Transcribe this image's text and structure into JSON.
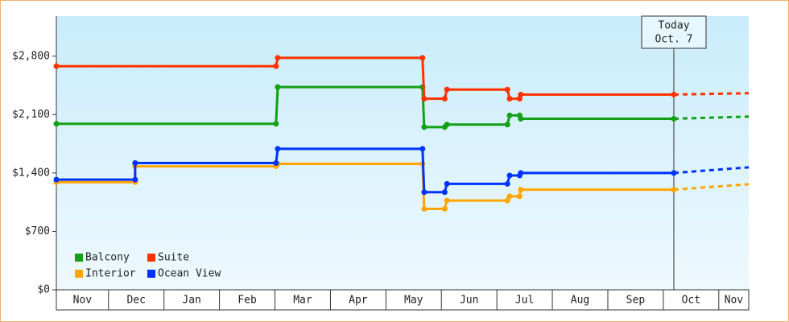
{
  "chart_data": {
    "type": "line",
    "months": [
      "Nov",
      "Dec",
      "Jan",
      "Feb",
      "Mar",
      "Apr",
      "May",
      "Jun",
      "Jul",
      "Aug",
      "Sep",
      "Oct",
      "Nov"
    ],
    "xlim": [
      0.06,
      12.54
    ],
    "ylim": [
      0,
      3280
    ],
    "yticks": [
      {
        "value": 0,
        "label": "$0"
      },
      {
        "value": 700,
        "label": "$700"
      },
      {
        "value": 1400,
        "label": "$1,400"
      },
      {
        "value": 2100,
        "label": "$2,100"
      },
      {
        "value": 2800,
        "label": "$2,800"
      }
    ],
    "grid": false,
    "legend": "bottom-left",
    "today": {
      "x": 11.19,
      "label": [
        "Today",
        "Oct. 7"
      ]
    },
    "forecast_x": 12.54,
    "series": [
      {
        "name": "Balcony",
        "color": "#14a014",
        "x": [
          0.06,
          4.02,
          4.05,
          6.66,
          6.69,
          7.06,
          7.1,
          8.19,
          8.23,
          8.41,
          8.43,
          11.19
        ],
        "values": [
          1990,
          1990,
          2430,
          2430,
          1950,
          1950,
          1980,
          1980,
          2090,
          2090,
          2050,
          2050
        ],
        "forecast_value": 2076
      },
      {
        "name": "Suite",
        "color": "#ff3300",
        "x": [
          0.06,
          4.02,
          4.05,
          6.66,
          6.69,
          7.06,
          7.1,
          8.19,
          8.23,
          8.41,
          8.43,
          11.19
        ],
        "values": [
          2680,
          2680,
          2780,
          2780,
          2290,
          2290,
          2400,
          2400,
          2290,
          2290,
          2340,
          2340
        ],
        "forecast_value": 2356
      },
      {
        "name": "Interior",
        "color": "#ffa500",
        "x": [
          0.06,
          1.48,
          1.48,
          4.02,
          4.05,
          6.66,
          6.69,
          7.06,
          7.1,
          8.19,
          8.23,
          8.41,
          8.43,
          11.19
        ],
        "values": [
          1290,
          1290,
          1480,
          1480,
          1510,
          1510,
          970,
          970,
          1070,
          1070,
          1120,
          1120,
          1200,
          1200
        ],
        "forecast_value": 1265
      },
      {
        "name": "Ocean View",
        "color": "#0033ff",
        "x": [
          0.06,
          1.48,
          1.48,
          4.02,
          4.05,
          6.66,
          6.69,
          7.06,
          7.1,
          8.19,
          8.23,
          8.41,
          8.43,
          11.19
        ],
        "values": [
          1320,
          1320,
          1520,
          1520,
          1690,
          1690,
          1170,
          1170,
          1270,
          1270,
          1370,
          1370,
          1400,
          1400
        ],
        "forecast_value": 1468
      }
    ]
  }
}
